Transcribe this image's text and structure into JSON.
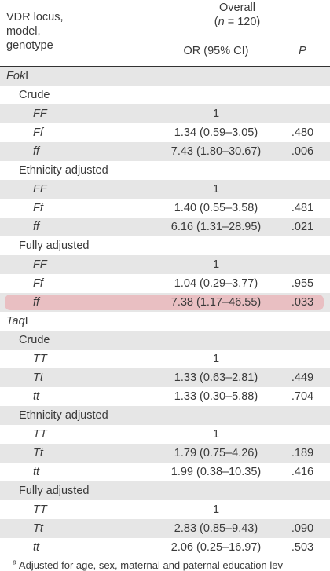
{
  "header": {
    "left_lines": [
      "VDR locus,",
      "model,",
      "genotype"
    ],
    "overall_title": "Overall",
    "overall_n": "(n = 120)",
    "or_label": "OR (95% CI)",
    "p_label": "P"
  },
  "rows": [
    {
      "type": "locus",
      "label": "FokI",
      "suffix": ""
    },
    {
      "type": "model",
      "label": "Crude",
      "sup": ""
    },
    {
      "type": "geno",
      "label": "FF",
      "or": "1",
      "p": ""
    },
    {
      "type": "geno",
      "label": "Ff",
      "or": "1.34 (0.59–3.05)",
      "p": ".480"
    },
    {
      "type": "geno",
      "label": "ff",
      "or": "7.43 (1.80–30.67)",
      "p": ".006"
    },
    {
      "type": "model",
      "label": "Ethnicity adjusted",
      "sup": ""
    },
    {
      "type": "geno",
      "label": "FF",
      "or": "1",
      "p": ""
    },
    {
      "type": "geno",
      "label": "Ff",
      "or": "1.40 (0.55–3.58)",
      "p": ".481"
    },
    {
      "type": "geno",
      "label": "ff",
      "or": "6.16 (1.31–28.95)",
      "p": ".021"
    },
    {
      "type": "model",
      "label": "Fully adjusted",
      "sup": "a"
    },
    {
      "type": "geno",
      "label": "FF",
      "or": "1",
      "p": ""
    },
    {
      "type": "geno",
      "label": "Ff",
      "or": "1.04 (0.29–3.77)",
      "p": ".955"
    },
    {
      "type": "geno",
      "label": "ff",
      "or": "7.38 (1.17–46.55)",
      "p": ".033",
      "highlight": true
    },
    {
      "type": "locus",
      "label": "TaqI",
      "suffix": ""
    },
    {
      "type": "model",
      "label": "Crude",
      "sup": ""
    },
    {
      "type": "geno",
      "label": "TT",
      "or": "1",
      "p": ""
    },
    {
      "type": "geno",
      "label": "Tt",
      "or": "1.33 (0.63–2.81)",
      "p": ".449"
    },
    {
      "type": "geno",
      "label": "tt",
      "or": "1.33 (0.30–5.88)",
      "p": ".704"
    },
    {
      "type": "model",
      "label": "Ethnicity adjusted",
      "sup": ""
    },
    {
      "type": "geno",
      "label": "TT",
      "or": "1",
      "p": ""
    },
    {
      "type": "geno",
      "label": "Tt",
      "or": "1.79 (0.75–4.26)",
      "p": ".189"
    },
    {
      "type": "geno",
      "label": "tt",
      "or": "1.99 (0.38–10.35)",
      "p": ".416"
    },
    {
      "type": "model",
      "label": "Fully adjusted",
      "sup": "a"
    },
    {
      "type": "geno",
      "label": "TT",
      "or": "1",
      "p": ""
    },
    {
      "type": "geno",
      "label": "Tt",
      "or": "2.83 (0.85–9.43)",
      "p": ".090"
    },
    {
      "type": "geno",
      "label": "tt",
      "or": "2.06 (0.25–16.97)",
      "p": ".503"
    }
  ],
  "footnote": {
    "marker": "a",
    "text": "Adjusted for age, sex, maternal and paternal education lev"
  },
  "colors": {
    "shade": "#e6e6e6",
    "highlight": "#e9b7bb",
    "text": "#3a3a3a"
  }
}
